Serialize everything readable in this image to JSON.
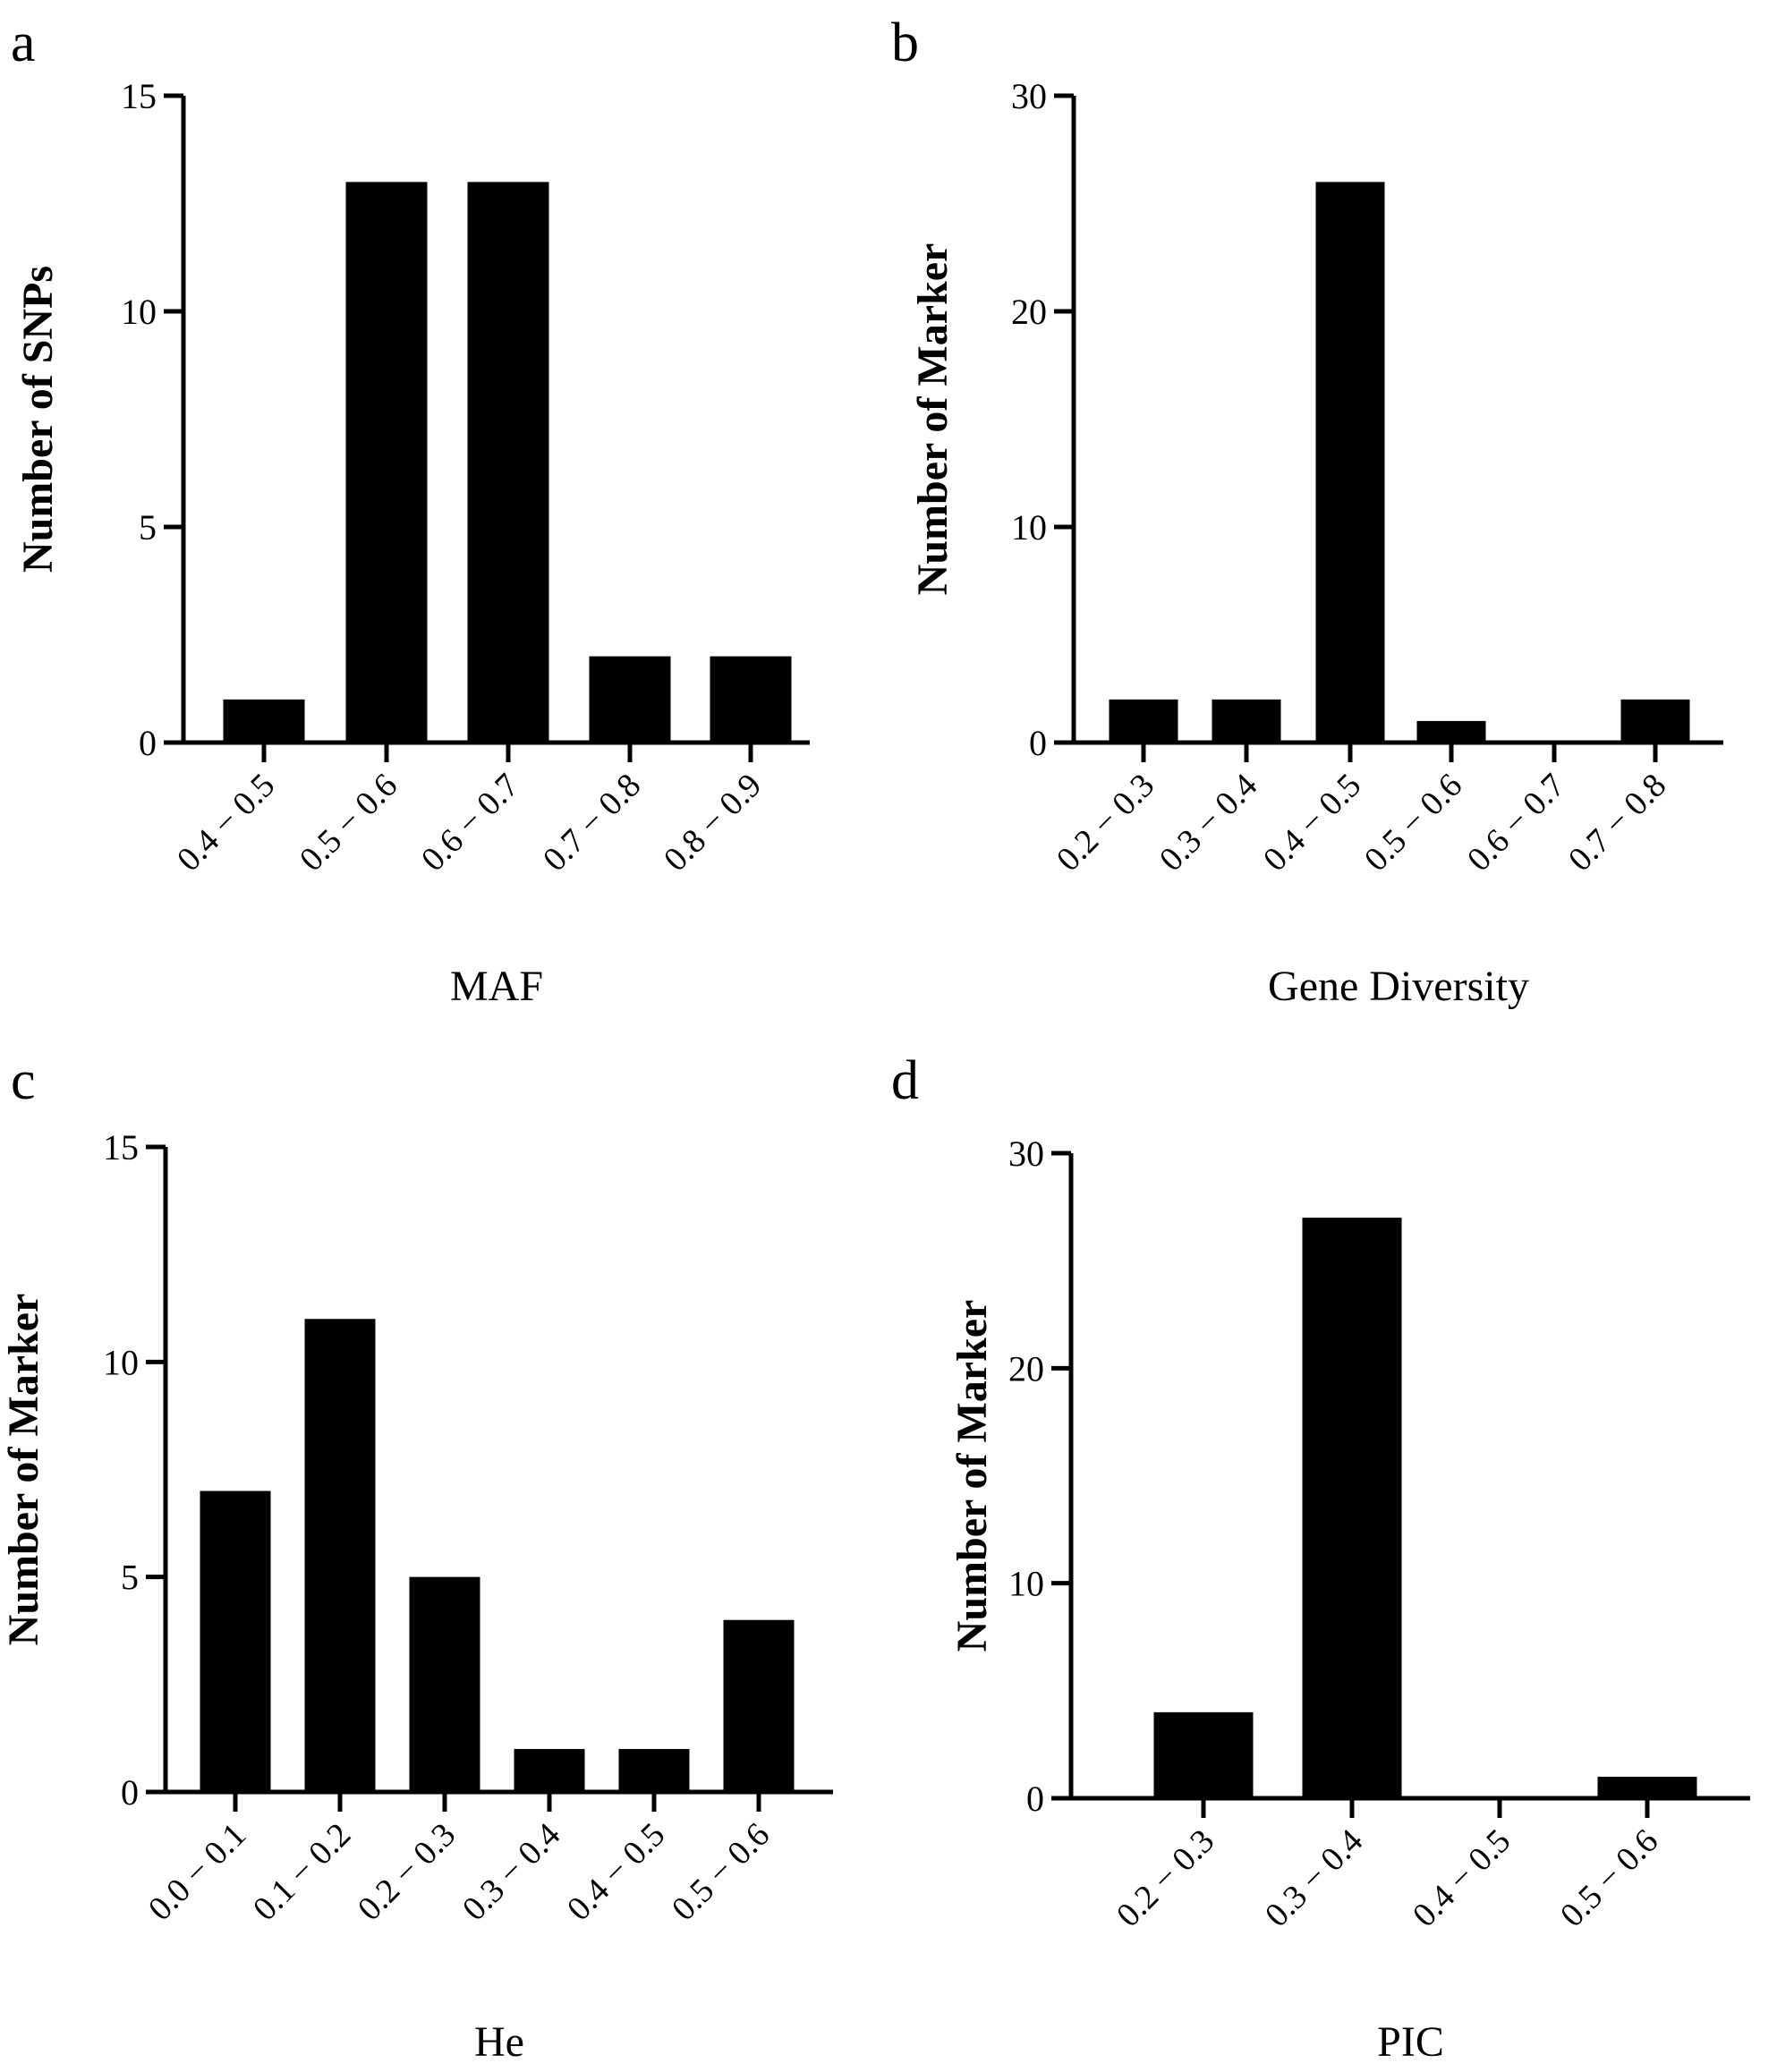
{
  "chart_data": [
    {
      "panel": "a",
      "type": "bar",
      "categories": [
        "0.4 − 0.5",
        "0.5 − 0.6",
        "0.6 − 0.7",
        "0.7 − 0.8",
        "0.8 − 0.9"
      ],
      "values": [
        1,
        13,
        13,
        2,
        2
      ],
      "ylim": [
        0,
        15
      ],
      "yticks": [
        0,
        5,
        10,
        15
      ],
      "xlabel": "MAF",
      "ylabel": "Number of SNPs",
      "color": "#000000"
    },
    {
      "panel": "b",
      "type": "bar",
      "categories": [
        "0.2 − 0.3",
        "0.3 − 0.4",
        "0.4 − 0.5",
        "0.5 − 0.6",
        "0.6 − 0.7",
        "0.7 − 0.8"
      ],
      "values": [
        2,
        2,
        26,
        1,
        0,
        2
      ],
      "ylim": [
        0,
        30
      ],
      "yticks": [
        0,
        10,
        20,
        30
      ],
      "xlabel": "Gene Diversity",
      "ylabel": "Number of Marker",
      "color": "#000000"
    },
    {
      "panel": "c",
      "type": "bar",
      "categories": [
        "0.0 − 0.1",
        "0.1 − 0.2",
        "0.2 − 0.3",
        "0.3 − 0.4",
        "0.4 − 0.5",
        "0.5 − 0.6"
      ],
      "values": [
        7,
        11,
        5,
        1,
        1,
        4
      ],
      "ylim": [
        0,
        15
      ],
      "yticks": [
        0,
        5,
        10,
        15
      ],
      "xlabel": "He",
      "ylabel": "Number of Marker",
      "color": "#000000"
    },
    {
      "panel": "d",
      "type": "bar",
      "categories": [
        "0.2 − 0.3",
        "0.3 − 0.4",
        "0.4 − 0.5",
        "0.5 − 0.6"
      ],
      "values": [
        4,
        27,
        0,
        1
      ],
      "ylim": [
        0,
        30
      ],
      "yticks": [
        0,
        10,
        20,
        30
      ],
      "xlabel": "PIC",
      "ylabel": "Number of Marker",
      "color": "#000000"
    }
  ]
}
